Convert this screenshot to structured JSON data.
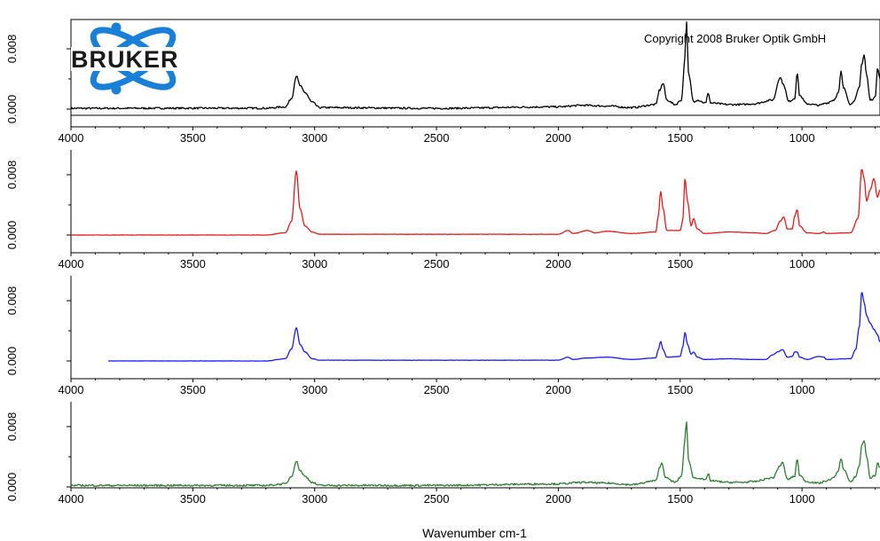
{
  "chart_data": {
    "type": "line",
    "xlabel": "Wavenumber cm-1",
    "xlim": [
      4000,
      680
    ],
    "ylim": [
      0.0,
      0.011
    ],
    "x_ticks": [
      "4000",
      "3500",
      "3000",
      "2500",
      "2000",
      "1500",
      "1000"
    ],
    "y_ticks": [
      "0.000",
      "0.008"
    ],
    "copyright": "Copyright 2008 Bruker Optik GmbH",
    "logo_text": "BRUKER",
    "logo_colors": {
      "ring": "#1a7fd6",
      "text": "#1a1a1a"
    },
    "panels": [
      {
        "color": "#000000",
        "noise": 0.00012,
        "points": [
          [
            4000,
            0.0001
          ],
          [
            3500,
            0.00012
          ],
          [
            3200,
            0.00012
          ],
          [
            3120,
            0.0003
          ],
          [
            3095,
            0.0014
          ],
          [
            3075,
            0.0044
          ],
          [
            3060,
            0.0031
          ],
          [
            3040,
            0.0022
          ],
          [
            3010,
            0.0009
          ],
          [
            2980,
            0.0002
          ],
          [
            2500,
            0.0001
          ],
          [
            2000,
            0.0003
          ],
          [
            1900,
            0.0005
          ],
          [
            1800,
            0.0004
          ],
          [
            1700,
            0.0002
          ],
          [
            1600,
            0.0006
          ],
          [
            1585,
            0.0025
          ],
          [
            1570,
            0.0034
          ],
          [
            1555,
            0.0012
          ],
          [
            1520,
            0.0006
          ],
          [
            1495,
            0.0012
          ],
          [
            1480,
            0.0068
          ],
          [
            1475,
            0.0118
          ],
          [
            1465,
            0.0045
          ],
          [
            1445,
            0.001
          ],
          [
            1430,
            0.0012
          ],
          [
            1395,
            0.0008
          ],
          [
            1385,
            0.0022
          ],
          [
            1375,
            0.0008
          ],
          [
            1300,
            0.0006
          ],
          [
            1250,
            0.0006
          ],
          [
            1200,
            0.0007
          ],
          [
            1120,
            0.0012
          ],
          [
            1090,
            0.0042
          ],
          [
            1075,
            0.0032
          ],
          [
            1055,
            0.001
          ],
          [
            1030,
            0.0014
          ],
          [
            1020,
            0.0048
          ],
          [
            1010,
            0.0018
          ],
          [
            980,
            0.0007
          ],
          [
            930,
            0.0005
          ],
          [
            900,
            0.0008
          ],
          [
            870,
            0.0012
          ],
          [
            850,
            0.0022
          ],
          [
            840,
            0.005
          ],
          [
            830,
            0.0028
          ],
          [
            800,
            0.0006
          ],
          [
            785,
            0.0012
          ],
          [
            765,
            0.0028
          ],
          [
            755,
            0.006
          ],
          [
            745,
            0.0072
          ],
          [
            735,
            0.0045
          ],
          [
            720,
            0.0012
          ],
          [
            700,
            0.0015
          ],
          [
            690,
            0.0055
          ],
          [
            680,
            0.004
          ]
        ]
      },
      {
        "color": "#e41a1c",
        "noise": 2e-05,
        "points": [
          [
            4000,
            0.0
          ],
          [
            3200,
            0.0
          ],
          [
            3120,
            0.0003
          ],
          [
            3095,
            0.0018
          ],
          [
            3075,
            0.0085
          ],
          [
            3060,
            0.0035
          ],
          [
            3040,
            0.0012
          ],
          [
            3010,
            0.0004
          ],
          [
            2980,
            0.0001
          ],
          [
            2000,
            0.0001
          ],
          [
            1960,
            0.0006
          ],
          [
            1940,
            0.0002
          ],
          [
            1880,
            0.0006
          ],
          [
            1850,
            0.0003
          ],
          [
            1800,
            0.0005
          ],
          [
            1700,
            0.0002
          ],
          [
            1600,
            0.0004
          ],
          [
            1590,
            0.0025
          ],
          [
            1580,
            0.0058
          ],
          [
            1570,
            0.0035
          ],
          [
            1555,
            0.0006
          ],
          [
            1500,
            0.0006
          ],
          [
            1490,
            0.0018
          ],
          [
            1480,
            0.0075
          ],
          [
            1470,
            0.0045
          ],
          [
            1455,
            0.0012
          ],
          [
            1445,
            0.0022
          ],
          [
            1430,
            0.0008
          ],
          [
            1400,
            0.0002
          ],
          [
            1300,
            0.0004
          ],
          [
            1200,
            0.0003
          ],
          [
            1150,
            0.0002
          ],
          [
            1110,
            0.0006
          ],
          [
            1090,
            0.0018
          ],
          [
            1075,
            0.0024
          ],
          [
            1060,
            0.0008
          ],
          [
            1040,
            0.0008
          ],
          [
            1030,
            0.0025
          ],
          [
            1020,
            0.0034
          ],
          [
            1010,
            0.0012
          ],
          [
            980,
            0.0003
          ],
          [
            930,
            0.0002
          ],
          [
            910,
            0.0004
          ],
          [
            900,
            0.0002
          ],
          [
            800,
            0.0003
          ],
          [
            770,
            0.0022
          ],
          [
            755,
            0.0088
          ],
          [
            745,
            0.0075
          ],
          [
            735,
            0.0045
          ],
          [
            720,
            0.006
          ],
          [
            705,
            0.0075
          ],
          [
            690,
            0.005
          ],
          [
            680,
            0.006
          ]
        ]
      },
      {
        "color": "#1a1aff",
        "noise": 2e-05,
        "points": [
          [
            3850,
            0.0
          ],
          [
            3500,
            0.0
          ],
          [
            3200,
            0.0
          ],
          [
            3120,
            0.0003
          ],
          [
            3095,
            0.0016
          ],
          [
            3075,
            0.0044
          ],
          [
            3060,
            0.0022
          ],
          [
            3040,
            0.0012
          ],
          [
            3010,
            0.0003
          ],
          [
            2980,
            0.0001
          ],
          [
            2000,
            0.0001
          ],
          [
            1960,
            0.0005
          ],
          [
            1940,
            0.0002
          ],
          [
            1880,
            0.0004
          ],
          [
            1800,
            0.0005
          ],
          [
            1700,
            0.0002
          ],
          [
            1600,
            0.0004
          ],
          [
            1590,
            0.0015
          ],
          [
            1580,
            0.0026
          ],
          [
            1570,
            0.0015
          ],
          [
            1555,
            0.0005
          ],
          [
            1500,
            0.0006
          ],
          [
            1490,
            0.0018
          ],
          [
            1480,
            0.0038
          ],
          [
            1470,
            0.0022
          ],
          [
            1455,
            0.0009
          ],
          [
            1445,
            0.0012
          ],
          [
            1430,
            0.0005
          ],
          [
            1400,
            0.0002
          ],
          [
            1300,
            0.0003
          ],
          [
            1200,
            0.0002
          ],
          [
            1150,
            0.0002
          ],
          [
            1120,
            0.0008
          ],
          [
            1100,
            0.0012
          ],
          [
            1080,
            0.0015
          ],
          [
            1060,
            0.0005
          ],
          [
            1040,
            0.0006
          ],
          [
            1030,
            0.0012
          ],
          [
            1020,
            0.0012
          ],
          [
            1010,
            0.0005
          ],
          [
            980,
            0.0002
          ],
          [
            930,
            0.0006
          ],
          [
            910,
            0.0005
          ],
          [
            900,
            0.0002
          ],
          [
            800,
            0.0003
          ],
          [
            780,
            0.0015
          ],
          [
            765,
            0.0045
          ],
          [
            755,
            0.0092
          ],
          [
            745,
            0.0078
          ],
          [
            735,
            0.006
          ],
          [
            720,
            0.005
          ],
          [
            705,
            0.0042
          ],
          [
            690,
            0.0035
          ],
          [
            680,
            0.0025
          ]
        ]
      },
      {
        "color": "#2e7d32",
        "noise": 0.00012,
        "points": [
          [
            4000,
            0.0002
          ],
          [
            3500,
            0.0002
          ],
          [
            3200,
            0.0002
          ],
          [
            3120,
            0.0004
          ],
          [
            3095,
            0.0014
          ],
          [
            3075,
            0.0034
          ],
          [
            3060,
            0.0022
          ],
          [
            3040,
            0.0014
          ],
          [
            3010,
            0.0006
          ],
          [
            2980,
            0.0002
          ],
          [
            2500,
            0.0002
          ],
          [
            2000,
            0.0004
          ],
          [
            1900,
            0.0006
          ],
          [
            1800,
            0.0005
          ],
          [
            1700,
            0.0003
          ],
          [
            1600,
            0.0008
          ],
          [
            1585,
            0.0025
          ],
          [
            1575,
            0.0032
          ],
          [
            1560,
            0.0012
          ],
          [
            1520,
            0.0006
          ],
          [
            1495,
            0.0014
          ],
          [
            1480,
            0.0062
          ],
          [
            1475,
            0.0088
          ],
          [
            1465,
            0.0035
          ],
          [
            1445,
            0.0012
          ],
          [
            1430,
            0.0012
          ],
          [
            1395,
            0.0009
          ],
          [
            1385,
            0.0018
          ],
          [
            1375,
            0.0008
          ],
          [
            1300,
            0.0006
          ],
          [
            1250,
            0.0006
          ],
          [
            1200,
            0.0007
          ],
          [
            1120,
            0.0012
          ],
          [
            1090,
            0.0028
          ],
          [
            1080,
            0.0032
          ],
          [
            1060,
            0.001
          ],
          [
            1030,
            0.0014
          ],
          [
            1020,
            0.0038
          ],
          [
            1010,
            0.0015
          ],
          [
            980,
            0.0007
          ],
          [
            930,
            0.0005
          ],
          [
            900,
            0.0008
          ],
          [
            870,
            0.0012
          ],
          [
            850,
            0.0022
          ],
          [
            840,
            0.0038
          ],
          [
            830,
            0.0024
          ],
          [
            800,
            0.0006
          ],
          [
            780,
            0.0014
          ],
          [
            765,
            0.0028
          ],
          [
            755,
            0.0055
          ],
          [
            745,
            0.0062
          ],
          [
            735,
            0.004
          ],
          [
            720,
            0.0012
          ],
          [
            700,
            0.0015
          ],
          [
            690,
            0.0032
          ],
          [
            680,
            0.0025
          ]
        ]
      }
    ]
  }
}
